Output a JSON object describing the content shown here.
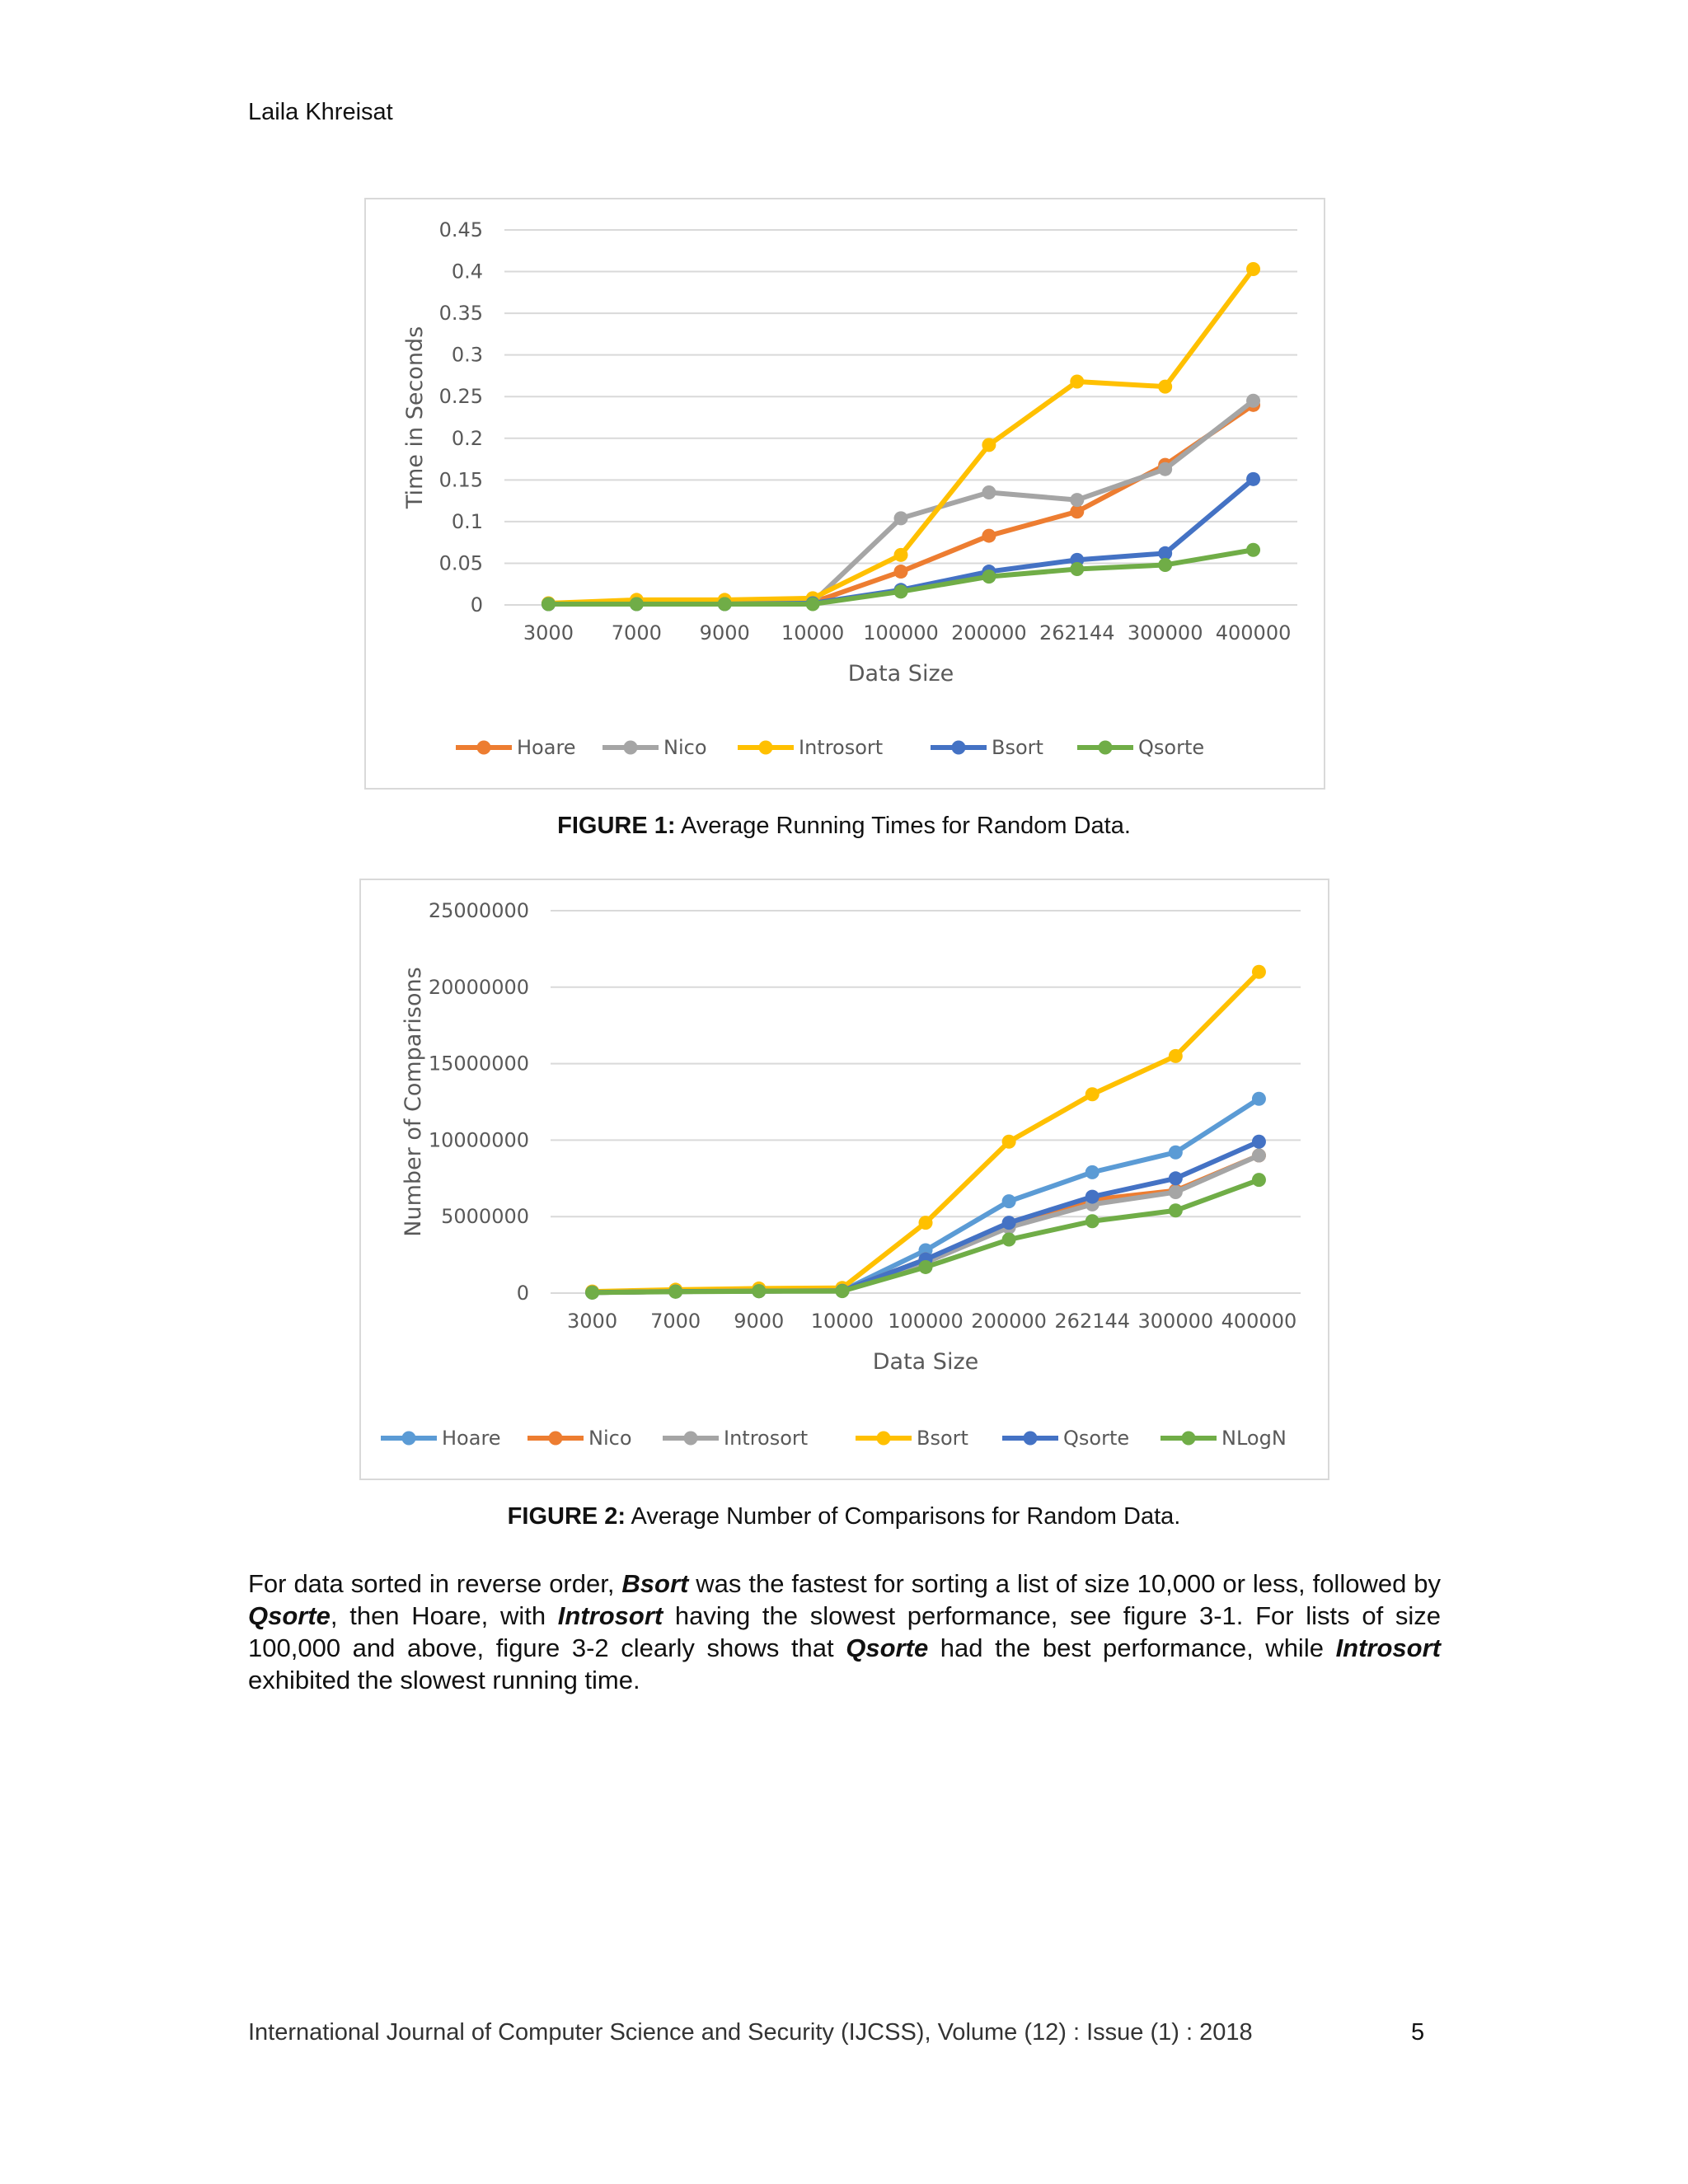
{
  "header": {
    "author": "Laila Khreisat"
  },
  "figure1": {
    "caption_label": "FIGURE 1:",
    "caption_text": " Average Running Times for Random Data."
  },
  "figure2": {
    "caption_label": "FIGURE 2:",
    "caption_text": " Average Number of Comparisons for Random Data."
  },
  "paragraph": [
    {
      "t": "For data sorted in reverse order, ",
      "b": false
    },
    {
      "t": "Bsort",
      "b": true
    },
    {
      "t": " was the fastest for sorting a list of size 10,000 or less, followed by ",
      "b": false
    },
    {
      "t": "Qsorte",
      "b": true
    },
    {
      "t": ", then Hoare, with ",
      "b": false
    },
    {
      "t": "Introsort",
      "b": true
    },
    {
      "t": " having the slowest performance, see figure 3-1. For lists of size 100,000 and above, figure 3-2 clearly shows that ",
      "b": false
    },
    {
      "t": "Qsorte",
      "b": true
    },
    {
      "t": " had the best performance, while ",
      "b": false
    },
    {
      "t": "Introsort",
      "b": true
    },
    {
      "t": " exhibited the slowest running time.",
      "b": false
    }
  ],
  "footer": {
    "journal": "International Journal of Computer Science and Security (IJCSS), Volume (12) : Issue (1) : 2018",
    "page_number": "5"
  },
  "chart_data": [
    {
      "type": "line",
      "title": "",
      "xlabel": "Data Size",
      "ylabel": "Time in Seconds",
      "categories": [
        "3000",
        "7000",
        "9000",
        "10000",
        "100000",
        "200000",
        "262144",
        "300000",
        "400000"
      ],
      "ylim": [
        0,
        0.45
      ],
      "yticks": [
        "0",
        "0.05",
        "0.1",
        "0.15",
        "0.2",
        "0.25",
        "0.3",
        "0.35",
        "0.4",
        "0.45"
      ],
      "grid": true,
      "legend": "bottom",
      "series": [
        {
          "name": "Hoare",
          "color": "#ED7D31",
          "values": [
            0.001,
            0.002,
            0.002,
            0.003,
            0.04,
            0.083,
            0.112,
            0.168,
            0.24
          ]
        },
        {
          "name": "Nico",
          "color": "#A5A5A5",
          "values": [
            0.001,
            0.002,
            0.002,
            0.003,
            0.104,
            0.135,
            0.126,
            0.163,
            0.245
          ]
        },
        {
          "name": "Introsort",
          "color": "#FFC000",
          "values": [
            0.002,
            0.006,
            0.006,
            0.008,
            0.06,
            0.192,
            0.268,
            0.262,
            0.403
          ]
        },
        {
          "name": "Bsort",
          "color": "#4472C4",
          "values": [
            0.001,
            0.001,
            0.001,
            0.002,
            0.018,
            0.04,
            0.054,
            0.062,
            0.151
          ]
        },
        {
          "name": "Qsorte",
          "color": "#70AD47",
          "values": [
            0.001,
            0.001,
            0.001,
            0.001,
            0.016,
            0.034,
            0.043,
            0.048,
            0.066
          ]
        }
      ]
    },
    {
      "type": "line",
      "title": "",
      "xlabel": "Data Size",
      "ylabel": "Number of Comparisons",
      "categories": [
        "3000",
        "7000",
        "9000",
        "10000",
        "100000",
        "200000",
        "262144",
        "300000",
        "400000"
      ],
      "ylim": [
        0,
        25000000
      ],
      "yticks": [
        "0",
        "5000000",
        "10000000",
        "15000000",
        "20000000",
        "25000000"
      ],
      "grid": true,
      "legend": "bottom",
      "series": [
        {
          "name": "Hoare",
          "color": "#5B9BD5",
          "values": [
            40000,
            100000,
            130000,
            150000,
            2800000,
            6000000,
            7900000,
            9200000,
            12700000
          ]
        },
        {
          "name": "Nico",
          "color": "#ED7D31",
          "values": [
            40000,
            100000,
            130000,
            150000,
            2200000,
            4500000,
            6100000,
            6700000,
            9000000
          ]
        },
        {
          "name": "Introsort",
          "color": "#A5A5A5",
          "values": [
            40000,
            100000,
            130000,
            150000,
            2000000,
            4300000,
            5800000,
            6600000,
            9000000
          ]
        },
        {
          "name": "Bsort",
          "color": "#FFC000",
          "values": [
            100000,
            220000,
            300000,
            340000,
            4600000,
            9900000,
            13000000,
            15500000,
            21000000
          ]
        },
        {
          "name": "Qsorte",
          "color": "#4472C4",
          "values": [
            40000,
            100000,
            130000,
            150000,
            2200000,
            4600000,
            6300000,
            7500000,
            9900000
          ]
        },
        {
          "name": "NLogN",
          "color": "#70AD47",
          "values": [
            35000,
            90000,
            120000,
            130000,
            1700000,
            3500000,
            4700000,
            5400000,
            7400000
          ]
        }
      ]
    }
  ]
}
